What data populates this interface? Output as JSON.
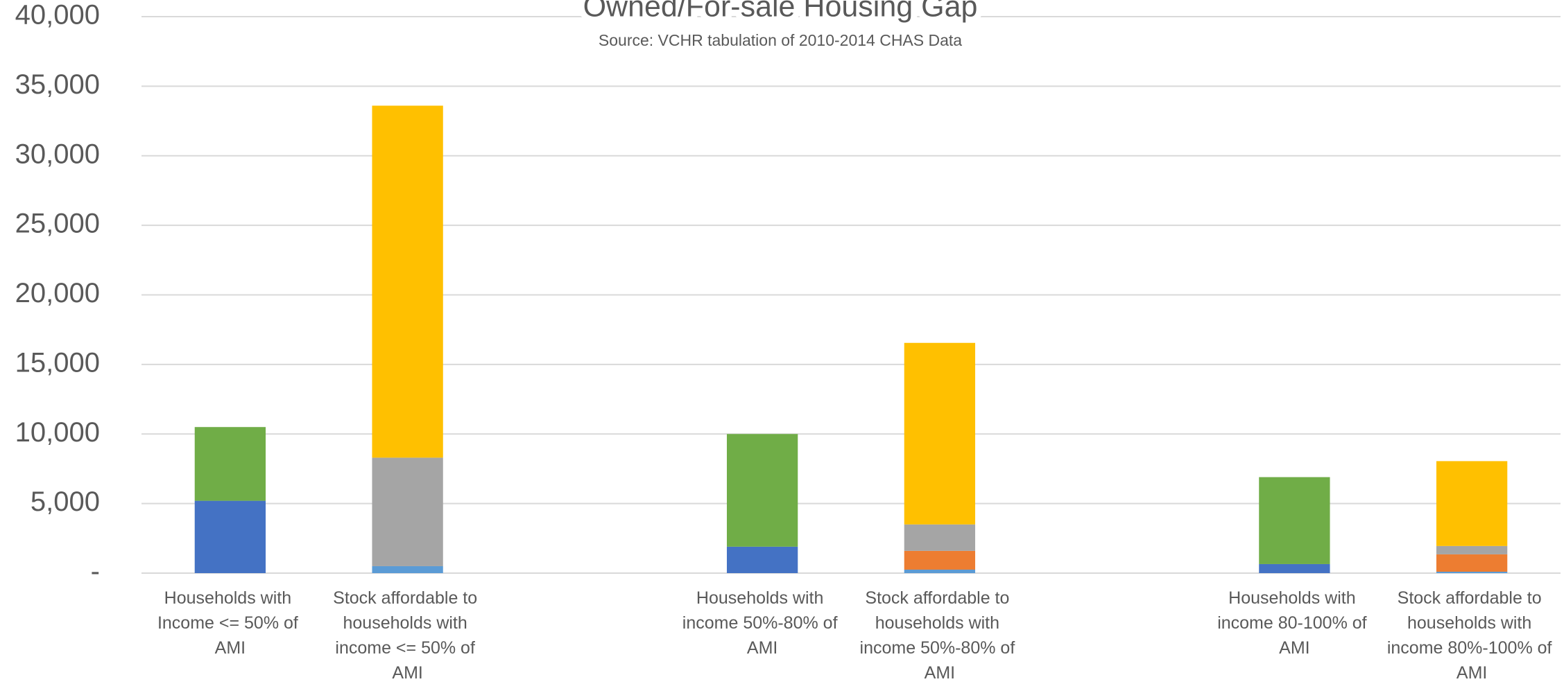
{
  "chart_data": {
    "type": "stacked_bar",
    "title": "Owned/For-sale Housing Gap",
    "subtitle": "Source: VCHR tabulation of 2010-2014 CHAS Data",
    "categories": [
      "Households with Income <= 50% of AMI",
      "Stock affordable to households with income <= 50% of AMI",
      null,
      "Households with income 50%-80% of AMI",
      "Stock affordable to households with income 50%-80% of AMI",
      null,
      "Households with income 80-100% of AMI",
      "Stock affordable to households with income 80%-100% of AMI"
    ],
    "series": [
      {
        "color": "#4472c4",
        "values": [
          5200,
          null,
          null,
          1900,
          null,
          null,
          650,
          null
        ]
      },
      {
        "color": "#5b9bd5",
        "values": [
          null,
          500,
          null,
          null,
          250,
          null,
          null,
          100
        ]
      },
      {
        "color": "#ed7d31",
        "values": [
          null,
          null,
          null,
          null,
          1350,
          null,
          null,
          1250
        ]
      },
      {
        "color": "#a5a5a5",
        "values": [
          null,
          7800,
          null,
          null,
          1900,
          null,
          null,
          600
        ]
      },
      {
        "color": "#ffc000",
        "values": [
          null,
          25300,
          null,
          null,
          13050,
          null,
          null,
          6100
        ]
      },
      {
        "color": "#70ad47",
        "values": [
          5300,
          null,
          null,
          8100,
          null,
          null,
          6250,
          null
        ]
      }
    ],
    "ylim": [
      0,
      40000
    ],
    "yticks": [
      {
        "value": 0,
        "label": "-"
      },
      {
        "value": 5000,
        "label": "5,000"
      },
      {
        "value": 10000,
        "label": "10,000"
      },
      {
        "value": 15000,
        "label": "15,000"
      },
      {
        "value": 20000,
        "label": "20,000"
      },
      {
        "value": 25000,
        "label": "25,000"
      },
      {
        "value": 30000,
        "label": "30,000"
      },
      {
        "value": 35000,
        "label": "35,000"
      },
      {
        "value": 40000,
        "label": "40,000"
      }
    ],
    "grid": true
  }
}
